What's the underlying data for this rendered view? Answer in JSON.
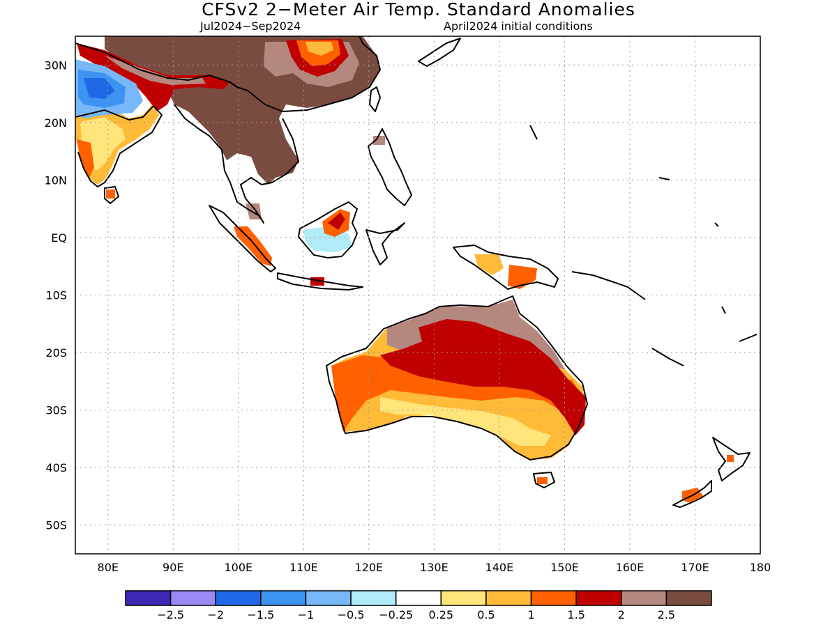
{
  "title": "CFSv2 2−Meter Air Temp. Standard Anomalies",
  "subtitle_left": "Jul2024−Sep2024",
  "subtitle_right": "April2024 initial conditions",
  "map": {
    "lon_range": [
      75,
      180
    ],
    "lat_range": [
      -55,
      35
    ],
    "grid": true,
    "lon_labels": [
      "80E",
      "90E",
      "100E",
      "110E",
      "120E",
      "130E",
      "140E",
      "150E",
      "160E",
      "170E",
      "180"
    ],
    "lon_values": [
      80,
      90,
      100,
      110,
      120,
      130,
      140,
      150,
      160,
      170,
      180
    ],
    "lat_labels": [
      "30N",
      "20N",
      "10N",
      "EQ",
      "10S",
      "20S",
      "30S",
      "40S",
      "50S"
    ],
    "lat_values": [
      30,
      20,
      10,
      0,
      -10,
      -20,
      -30,
      -40,
      -50
    ]
  },
  "colorbar": {
    "colors": [
      "#3b28b4",
      "#9b88f5",
      "#1f68e6",
      "#3c94f0",
      "#78b8f8",
      "#b0ecf8",
      "#ffffff",
      "#ffe57a",
      "#ffba38",
      "#ff6000",
      "#c00000",
      "#b4887e",
      "#7a4c40"
    ],
    "labels": [
      "−2.5",
      "−2",
      "−1.5",
      "−1",
      "−0.5",
      "−0.25",
      "0.25",
      "0.5",
      "1",
      "1.5",
      "2",
      "2.5"
    ]
  }
}
